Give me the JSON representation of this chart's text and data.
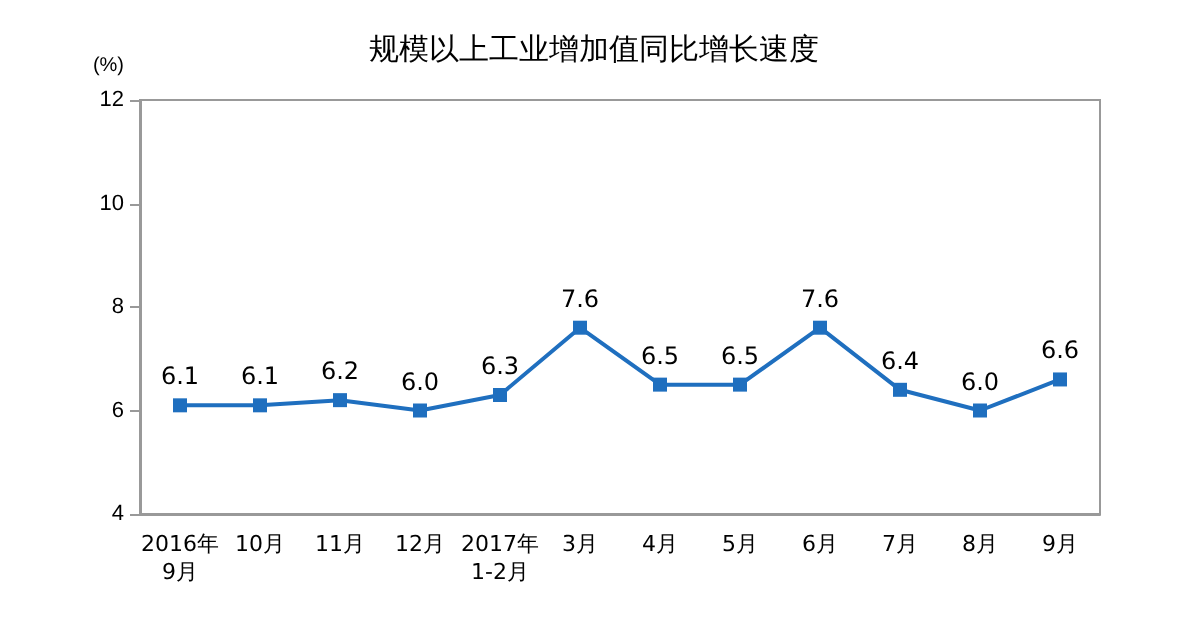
{
  "chart_data": {
    "type": "line",
    "title": "规模以上工业增加值同比增长速度",
    "ylabel": "(%)",
    "categories": [
      "2016年\n9月",
      "10月",
      "11月",
      "12月",
      "2017年\n1-2月",
      "3月",
      "4月",
      "5月",
      "6月",
      "7月",
      "8月",
      "9月"
    ],
    "series": [
      {
        "color": "#1f6fbf",
        "values": [
          6.1,
          6.1,
          6.2,
          6.0,
          6.3,
          7.6,
          6.5,
          6.5,
          7.6,
          6.4,
          6.0,
          6.6
        ],
        "value_labels": [
          "6.1",
          "6.1",
          "6.2",
          "6.0",
          "6.3",
          "7.6",
          "6.5",
          "6.5",
          "7.6",
          "6.4",
          "6.0",
          "6.6"
        ]
      }
    ],
    "ylim": [
      4,
      12
    ],
    "yticks": [
      4,
      6,
      8,
      10,
      12
    ],
    "marker": "square",
    "line_style": "solid",
    "grid": false
  }
}
